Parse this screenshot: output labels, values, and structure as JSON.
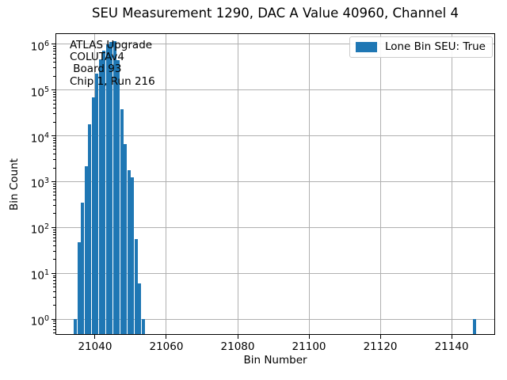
{
  "title": "SEU Measurement 1290, DAC A Value 40960, Channel 4",
  "annotation": {
    "lines": [
      "ATLAS Upgrade",
      "COLUTAv4",
      " Board 93",
      "Chip 1, Run 216"
    ]
  },
  "legend": {
    "label": "Lone Bin SEU: True",
    "swatch_color": "#1f77b4"
  },
  "axes": {
    "xlabel": "Bin Number",
    "ylabel": "Bin Count"
  },
  "colors": {
    "bar": "#1f77b4",
    "grid": "#b0b0b0",
    "spine": "#000000",
    "legend_border": "#cccccc",
    "background": "#ffffff"
  },
  "chart_data": {
    "type": "bar",
    "title": "SEU Measurement 1290, DAC A Value 40960, Channel 4",
    "xlabel": "Bin Number",
    "ylabel": "Bin Count",
    "yscale": "log",
    "grid": true,
    "legend_entries": [
      "Lone Bin SEU: True"
    ],
    "legend_position": "upper right",
    "bar_color": "#1f77b4",
    "xlim": [
      21028.9,
      21152.2
    ],
    "ylim": [
      0.457,
      1720000
    ],
    "x_ticks": [
      21040,
      21060,
      21080,
      21100,
      21120,
      21140
    ],
    "y_tick_exponents": [
      0,
      1,
      2,
      3,
      4,
      5,
      6
    ],
    "bin_width": 1,
    "bins_left_edge": [
      21034,
      21035,
      21036,
      21037,
      21038,
      21039,
      21040,
      21041,
      21042,
      21043,
      21044,
      21045,
      21046,
      21047,
      21048,
      21049,
      21050,
      21051,
      21052,
      21053,
      21146
    ],
    "counts": [
      1,
      47,
      350,
      2200,
      18000,
      70000,
      230000,
      460000,
      730000,
      1000000,
      1100000,
      1150000,
      450000,
      38000,
      6600,
      1800,
      1250,
      55,
      6,
      1,
      1
    ],
    "lone_bin": 21146,
    "lone_bin_count": 1
  }
}
